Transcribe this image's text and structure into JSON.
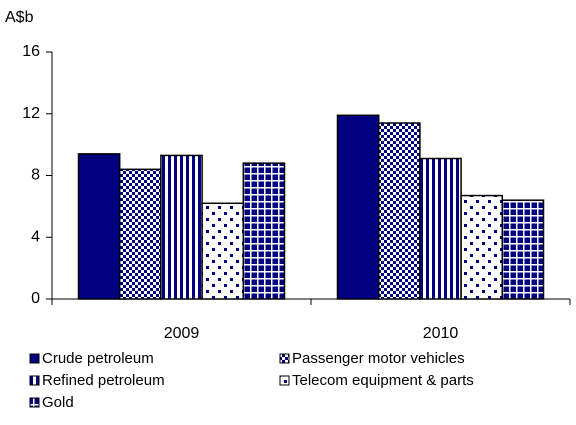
{
  "chart_data": {
    "type": "bar",
    "y_label": "A$b",
    "categories": [
      "2009",
      "2010"
    ],
    "series": [
      {
        "name": "Crude petroleum",
        "color": "#000080",
        "pattern": "solid",
        "values": [
          9.4,
          11.9
        ]
      },
      {
        "name": "Passenger motor vehicles",
        "color": "#000080",
        "pattern": "checker",
        "values": [
          8.4,
          11.4
        ]
      },
      {
        "name": "Refined petroleum",
        "color": "#000080",
        "pattern": "vstripe",
        "values": [
          9.3,
          9.1
        ]
      },
      {
        "name": "Telecom equipment & parts",
        "color": "#000080",
        "pattern": "dots",
        "values": [
          6.2,
          6.7
        ]
      },
      {
        "name": "Gold",
        "color": "#000080",
        "pattern": "grid",
        "values": [
          8.8,
          6.4
        ]
      }
    ],
    "ylim": [
      0,
      16
    ],
    "yticks": [
      0,
      4,
      8,
      12,
      16
    ]
  }
}
